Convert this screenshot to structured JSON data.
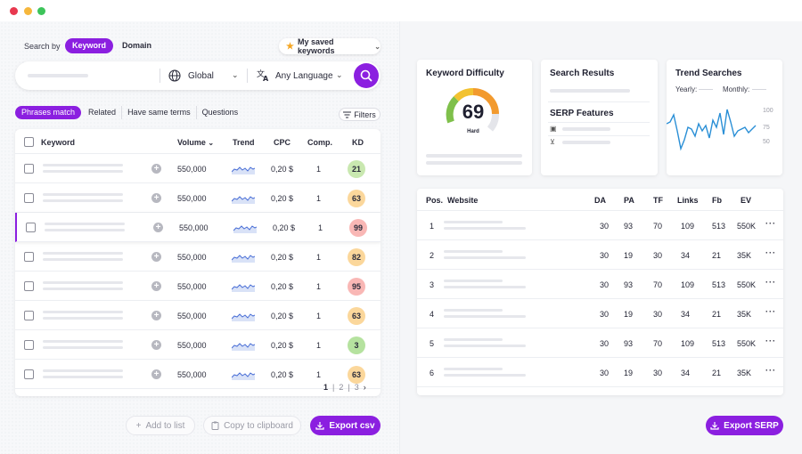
{
  "window": {
    "controls": [
      {
        "name": "close",
        "color": "#e8384f"
      },
      {
        "name": "minimize",
        "color": "#f6b73c"
      },
      {
        "name": "maximize",
        "color": "#3dc45a"
      }
    ]
  },
  "search": {
    "search_by_label": "Search by",
    "modes": [
      {
        "label": "Keyword",
        "active": true
      },
      {
        "label": "Domain",
        "active": false
      }
    ],
    "saved_keywords_label": "My saved keywords",
    "location": "Global",
    "language": "Any Language"
  },
  "filter_tabs": [
    {
      "label": "Phrases match",
      "active": true
    },
    {
      "label": "Related",
      "active": false
    },
    {
      "label": "Have same terms",
      "active": false
    },
    {
      "label": "Questions",
      "active": false
    }
  ],
  "filters_label": "Filters",
  "keywords_table": {
    "headers": {
      "keyword": "Keyword",
      "volume": "Volume",
      "trend": "Trend",
      "cpc": "CPC",
      "comp": "Comp.",
      "kd": "KD"
    },
    "rows": [
      {
        "volume": "550,000",
        "cpc": "0,20 $",
        "comp": "1",
        "kd": "21",
        "kd_color": "#c9e8b0",
        "selected": false
      },
      {
        "volume": "550,000",
        "cpc": "0,20 $",
        "comp": "1",
        "kd": "63",
        "kd_color": "#fbd79b",
        "selected": false
      },
      {
        "volume": "550,000",
        "cpc": "0,20 $",
        "comp": "1",
        "kd": "99",
        "kd_color": "#f9b7b5",
        "selected": true
      },
      {
        "volume": "550,000",
        "cpc": "0,20 $",
        "comp": "1",
        "kd": "82",
        "kd_color": "#fbd79b",
        "selected": false
      },
      {
        "volume": "550,000",
        "cpc": "0,20 $",
        "comp": "1",
        "kd": "95",
        "kd_color": "#f9b7b5",
        "selected": false
      },
      {
        "volume": "550,000",
        "cpc": "0,20 $",
        "comp": "1",
        "kd": "63",
        "kd_color": "#fbd79b",
        "selected": false
      },
      {
        "volume": "550,000",
        "cpc": "0,20 $",
        "comp": "1",
        "kd": "3",
        "kd_color": "#b5e29f",
        "selected": false
      },
      {
        "volume": "550,000",
        "cpc": "0,20 $",
        "comp": "1",
        "kd": "63",
        "kd_color": "#fbd79b",
        "selected": false
      }
    ],
    "pagination": [
      "1",
      "2",
      "3"
    ]
  },
  "actions": {
    "add_to_list": "Add to list",
    "copy_clipboard": "Copy to clipboard",
    "export_csv": "Export csv",
    "export_serp": "Export SERP"
  },
  "cards": {
    "keyword_difficulty": {
      "title": "Keyword Difficulty",
      "value": "69",
      "label": "Hard"
    },
    "search_results": {
      "title": "Search Results"
    },
    "serp_features": {
      "title": "SERP Features"
    },
    "trend_searches": {
      "title": "Trend Searches",
      "legend_yearly": "Yearly:",
      "legend_monthly": "Monthly:",
      "y_ticks": [
        "100",
        "75",
        "50"
      ],
      "line_color": "#2a8fd6"
    }
  },
  "serp_table": {
    "headers": {
      "pos": "Pos.",
      "website": "Website",
      "da": "DA",
      "pa": "PA",
      "tf": "TF",
      "links": "Links",
      "fb": "Fb",
      "ev": "EV"
    },
    "rows": [
      {
        "pos": "1",
        "da": "30",
        "pa": "93",
        "tf": "70",
        "links": "109",
        "fb": "513",
        "ev": "550K"
      },
      {
        "pos": "2",
        "da": "30",
        "pa": "19",
        "tf": "30",
        "links": "34",
        "fb": "21",
        "ev": "35K"
      },
      {
        "pos": "3",
        "da": "30",
        "pa": "93",
        "tf": "70",
        "links": "109",
        "fb": "513",
        "ev": "550K"
      },
      {
        "pos": "4",
        "da": "30",
        "pa": "19",
        "tf": "30",
        "links": "34",
        "fb": "21",
        "ev": "35K"
      },
      {
        "pos": "5",
        "da": "30",
        "pa": "93",
        "tf": "70",
        "links": "109",
        "fb": "513",
        "ev": "550K"
      },
      {
        "pos": "6",
        "da": "30",
        "pa": "19",
        "tf": "30",
        "links": "34",
        "fb": "21",
        "ev": "35K"
      }
    ]
  },
  "accent_color": "#8b1fe0"
}
